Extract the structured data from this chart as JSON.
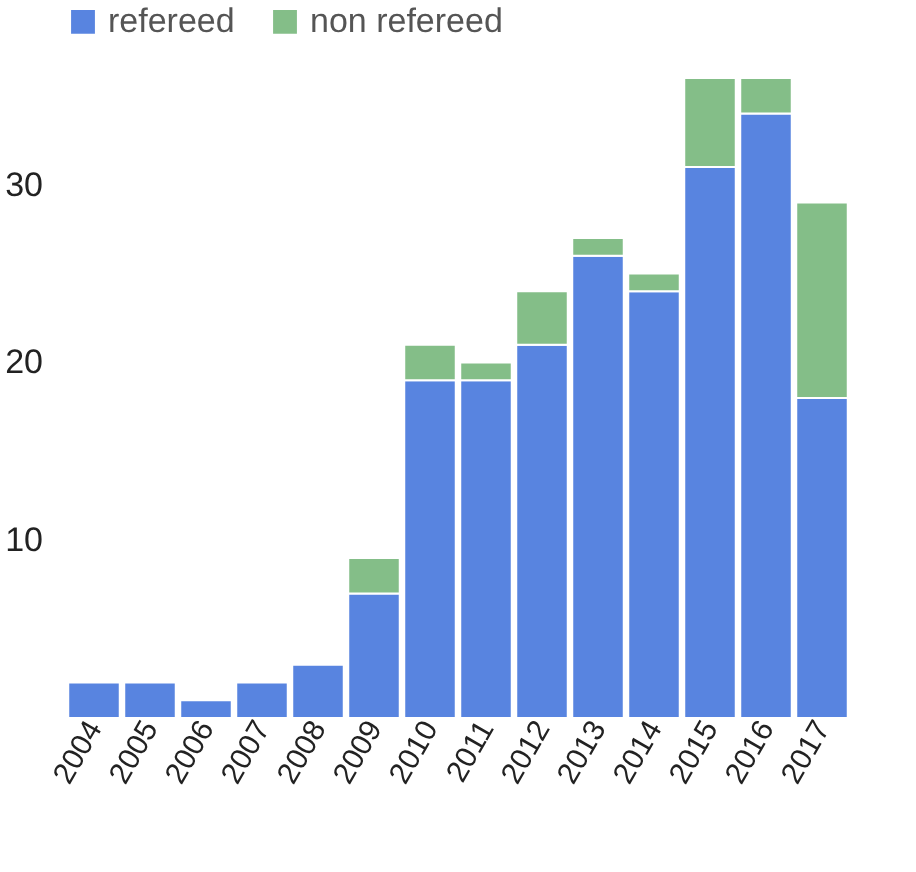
{
  "chart_data": {
    "type": "bar",
    "stacked": true,
    "categories": [
      "2004",
      "2005",
      "2006",
      "2007",
      "2008",
      "2009",
      "2010",
      "2011",
      "2012",
      "2013",
      "2014",
      "2015",
      "2016",
      "2017"
    ],
    "series": [
      {
        "name": "refereed",
        "color": "#5884e0",
        "values": [
          2,
          2,
          1,
          2,
          3,
          7,
          19,
          19,
          21,
          26,
          24,
          31,
          34,
          18
        ]
      },
      {
        "name": "non refereed",
        "color": "#84be88",
        "values": [
          null,
          null,
          null,
          null,
          null,
          2,
          2,
          1,
          3,
          1,
          1,
          5,
          2,
          11
        ]
      }
    ],
    "ylim": [
      0,
      36
    ],
    "yticks": [
      10,
      20,
      30
    ],
    "grid": false,
    "legend": "top left"
  }
}
